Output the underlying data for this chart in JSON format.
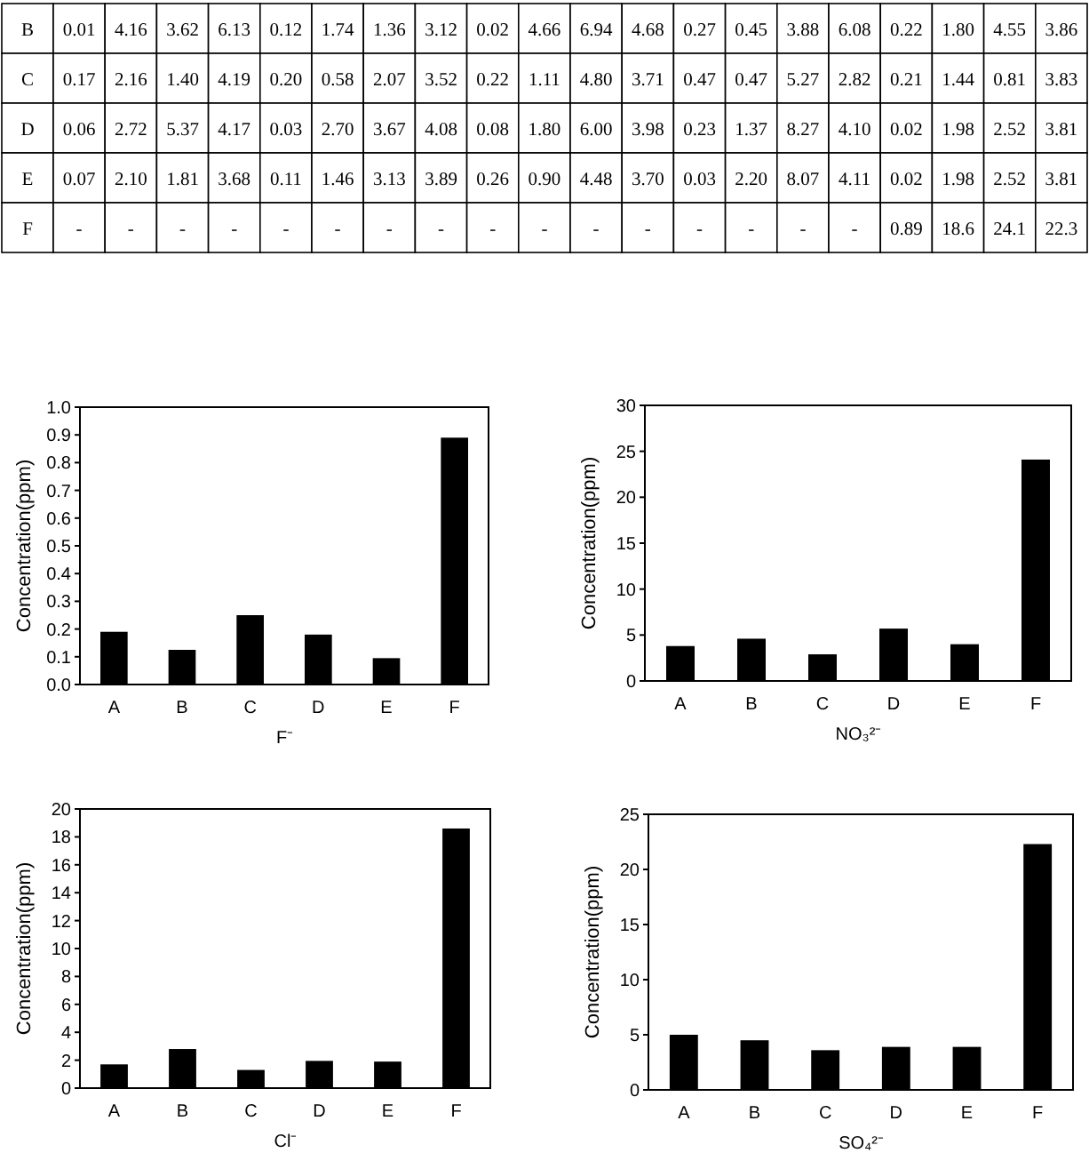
{
  "chart_data": [
    {
      "type": "other",
      "annotations": [
        "B",
        "0.01",
        "4.16",
        "3.62",
        "6.13",
        "0.12",
        "1.74",
        "1.36",
        "3.12",
        "0.02",
        "4.66",
        "6.94",
        "4.68",
        "0.27",
        "0.45",
        "3.88",
        "6.08",
        "0.22",
        "1.80",
        "4.55",
        "3.86",
        "C",
        "0.17",
        "2.16",
        "1.40",
        "4.19",
        "0.20",
        "0.58",
        "2.07",
        "3.52",
        "0.22",
        "1.11",
        "4.80",
        "3.71",
        "0.47",
        "0.47",
        "5.27",
        "2.82",
        "0.21",
        "1.44",
        "0.81",
        "3.83",
        "D",
        "0.06",
        "2.72",
        "5.37",
        "4.17",
        "0.03",
        "2.70",
        "3.67",
        "4.08",
        "0.08",
        "1.80",
        "6.00",
        "3.98",
        "0.23",
        "1.37",
        "8.27",
        "4.10",
        "0.02",
        "1.98",
        "2.52",
        "3.81",
        "E",
        "0.07",
        "2.10",
        "1.81",
        "3.68",
        "0.11",
        "1.46",
        "3.13",
        "3.89",
        "0.26",
        "0.90",
        "4.48",
        "3.70",
        "0.03",
        "2.20",
        "8.07",
        "4.11",
        "0.02",
        "1.98",
        "2.52",
        "3.81",
        "F",
        "-",
        "-",
        "-",
        "-",
        "-",
        "-",
        "-",
        "-",
        "-",
        "-",
        "-",
        "-",
        "-",
        "-",
        "-",
        "-",
        "0.89",
        "18.6",
        "24.1",
        "22.3"
      ]
    },
    {
      "type": "bar",
      "categories": [
        "A",
        "B",
        "C",
        "D",
        "E",
        "F"
      ],
      "values": [
        0.19,
        0.125,
        0.25,
        0.18,
        0.095,
        0.89
      ],
      "color": "#000000",
      "xlabel": "F⁻",
      "ylabel": "Concentration(ppm)",
      "ylim": [
        0,
        1
      ],
      "yticks": [
        {
          "value": 0,
          "label": "0.0"
        },
        0.1,
        0.2,
        0.3,
        0.4,
        0.5,
        0.6,
        0.7,
        0.8,
        0.9,
        {
          "value": 1,
          "label": "1.0"
        }
      ]
    },
    {
      "type": "bar",
      "categories": [
        "A",
        "B",
        "C",
        "D",
        "E",
        "F"
      ],
      "values": [
        3.8,
        4.6,
        2.9,
        5.7,
        4.0,
        24.1
      ],
      "color": "#000000",
      "xlabel": "NO₃²⁻",
      "ylabel": "Concentration(ppm)",
      "ylim": [
        0,
        30
      ],
      "yticks": [
        0,
        5,
        10,
        15,
        20,
        25,
        30
      ]
    },
    {
      "type": "bar",
      "categories": [
        "A",
        "B",
        "C",
        "D",
        "E",
        "F"
      ],
      "values": [
        1.7,
        2.8,
        1.3,
        1.95,
        1.9,
        18.6
      ],
      "color": "#000000",
      "xlabel": "Cl⁻",
      "ylabel": "Concentration(ppm)",
      "ylim": [
        0,
        20
      ],
      "yticks": [
        0,
        2,
        4,
        6,
        8,
        10,
        12,
        14,
        16,
        18,
        20
      ]
    },
    {
      "type": "bar",
      "categories": [
        "A",
        "B",
        "C",
        "D",
        "E",
        "F"
      ],
      "values": [
        5.0,
        4.5,
        3.6,
        3.9,
        3.9,
        22.3
      ],
      "color": "#000000",
      "xlabel": "SO₄²⁻",
      "ylabel": "Concentration(ppm)",
      "ylim": [
        0,
        25
      ],
      "yticks": [
        0,
        5,
        10,
        15,
        20,
        25
      ]
    }
  ]
}
